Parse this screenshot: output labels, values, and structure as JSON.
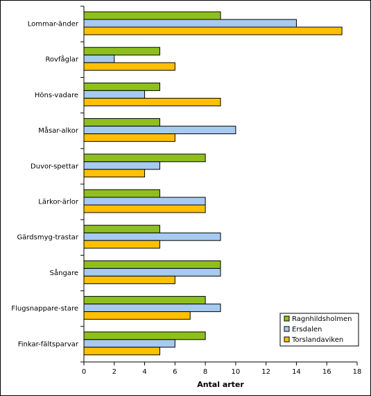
{
  "chart_data": {
    "type": "bar",
    "orientation": "horizontal",
    "categories": [
      "Lommar-änder",
      "Rovfåglar",
      "Höns-vadare",
      "Måsar-alkor",
      "Duvor-spettar",
      "Lärkor-ärlor",
      "Gärdsmyg-trastar",
      "Sångare",
      "Flugsnappare-stare",
      "Finkar-fältsparvar"
    ],
    "series": [
      {
        "name": "Ragnhildsholmen",
        "color": "#8fbf1f",
        "values": [
          9,
          5,
          5,
          5,
          8,
          5,
          5,
          9,
          8,
          8
        ]
      },
      {
        "name": "Ersdalen",
        "color": "#a6caf0",
        "values": [
          14,
          2,
          4,
          10,
          5,
          8,
          9,
          9,
          9,
          6
        ]
      },
      {
        "name": "Torslandaviken",
        "color": "#ffc000",
        "values": [
          17,
          6,
          9,
          6,
          4,
          8,
          5,
          6,
          7,
          5
        ]
      }
    ],
    "xlabel": "Antal arter",
    "ylabel": "",
    "xlim": [
      0,
      18
    ],
    "xticks": [
      "0",
      "2",
      "4",
      "6",
      "8",
      "10",
      "12",
      "14",
      "16",
      "18"
    ],
    "grid": false,
    "legend_position": "bottom-right"
  }
}
